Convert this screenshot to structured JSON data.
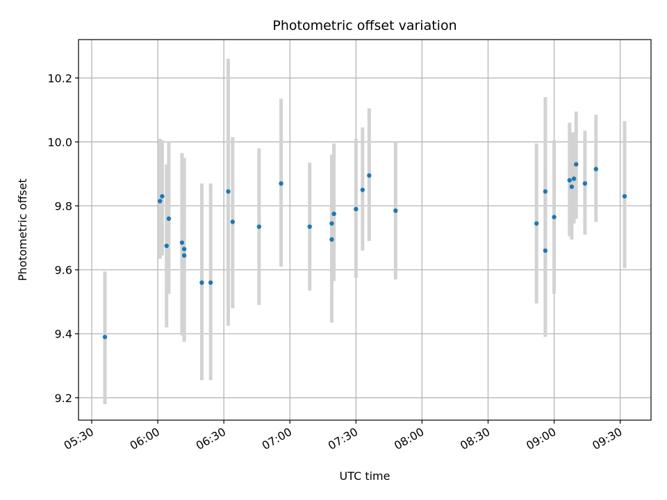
{
  "chart_data": {
    "type": "scatter",
    "title": "Photometric offset variation",
    "xlabel": "UTC time",
    "ylabel": "Photometric offset",
    "x_ticks": [
      "05:30",
      "06:00",
      "06:30",
      "07:00",
      "07:30",
      "08:00",
      "08:30",
      "09:00",
      "09:30"
    ],
    "y_ticks": [
      "9.2",
      "9.4",
      "9.6",
      "9.8",
      "10.0",
      "10.2"
    ],
    "xlim": [
      "05:24",
      "09:44"
    ],
    "ylim": [
      9.13,
      10.32
    ],
    "grid": true,
    "point_color": "#1f77b4",
    "errorbar_color": "#d3d3d3",
    "points": [
      {
        "x": "05:36",
        "y": 9.39,
        "lo": 9.18,
        "hi": 9.595
      },
      {
        "x": "06:01",
        "y": 9.815,
        "lo": 9.635,
        "hi": 10.01
      },
      {
        "x": "06:02",
        "y": 9.83,
        "lo": 9.645,
        "hi": 10.005
      },
      {
        "x": "06:04",
        "y": 9.675,
        "lo": 9.42,
        "hi": 9.93
      },
      {
        "x": "06:05",
        "y": 9.76,
        "lo": 9.525,
        "hi": 10.0
      },
      {
        "x": "06:11",
        "y": 9.685,
        "lo": 9.395,
        "hi": 9.965
      },
      {
        "x": "06:12",
        "y": 9.665,
        "lo": 9.38,
        "hi": 9.95
      },
      {
        "x": "06:12",
        "y": 9.645,
        "lo": 9.375,
        "hi": 9.915
      },
      {
        "x": "06:20",
        "y": 9.56,
        "lo": 9.255,
        "hi": 9.87
      },
      {
        "x": "06:24",
        "y": 9.56,
        "lo": 9.255,
        "hi": 9.87
      },
      {
        "x": "06:32",
        "y": 9.845,
        "lo": 9.425,
        "hi": 10.26
      },
      {
        "x": "06:34",
        "y": 9.75,
        "lo": 9.48,
        "hi": 10.015
      },
      {
        "x": "06:46",
        "y": 9.735,
        "lo": 9.49,
        "hi": 9.98
      },
      {
        "x": "06:56",
        "y": 9.87,
        "lo": 9.61,
        "hi": 10.135
      },
      {
        "x": "07:09",
        "y": 9.735,
        "lo": 9.535,
        "hi": 9.935
      },
      {
        "x": "07:19",
        "y": 9.695,
        "lo": 9.435,
        "hi": 9.96
      },
      {
        "x": "07:19",
        "y": 9.745,
        "lo": 9.53,
        "hi": 9.96
      },
      {
        "x": "07:20",
        "y": 9.775,
        "lo": 9.565,
        "hi": 9.995
      },
      {
        "x": "07:30",
        "y": 9.79,
        "lo": 9.575,
        "hi": 10.01
      },
      {
        "x": "07:33",
        "y": 9.85,
        "lo": 9.66,
        "hi": 10.045
      },
      {
        "x": "07:36",
        "y": 9.895,
        "lo": 9.69,
        "hi": 10.105
      },
      {
        "x": "07:48",
        "y": 9.785,
        "lo": 9.57,
        "hi": 10.0
      },
      {
        "x": "08:52",
        "y": 9.745,
        "lo": 9.495,
        "hi": 9.995
      },
      {
        "x": "08:56",
        "y": 9.66,
        "lo": 9.39,
        "hi": 9.925
      },
      {
        "x": "08:56",
        "y": 9.845,
        "lo": 9.555,
        "hi": 10.14
      },
      {
        "x": "09:00",
        "y": 9.765,
        "lo": 9.525,
        "hi": 10.005
      },
      {
        "x": "09:07",
        "y": 9.88,
        "lo": 9.705,
        "hi": 10.06
      },
      {
        "x": "09:08",
        "y": 9.86,
        "lo": 9.695,
        "hi": 10.03
      },
      {
        "x": "09:09",
        "y": 9.885,
        "lo": 9.745,
        "hi": 10.03
      },
      {
        "x": "09:10",
        "y": 9.93,
        "lo": 9.76,
        "hi": 10.095
      },
      {
        "x": "09:14",
        "y": 9.87,
        "lo": 9.71,
        "hi": 10.035
      },
      {
        "x": "09:19",
        "y": 9.915,
        "lo": 9.75,
        "hi": 10.085
      },
      {
        "x": "09:32",
        "y": 9.83,
        "lo": 9.605,
        "hi": 10.065
      }
    ]
  }
}
